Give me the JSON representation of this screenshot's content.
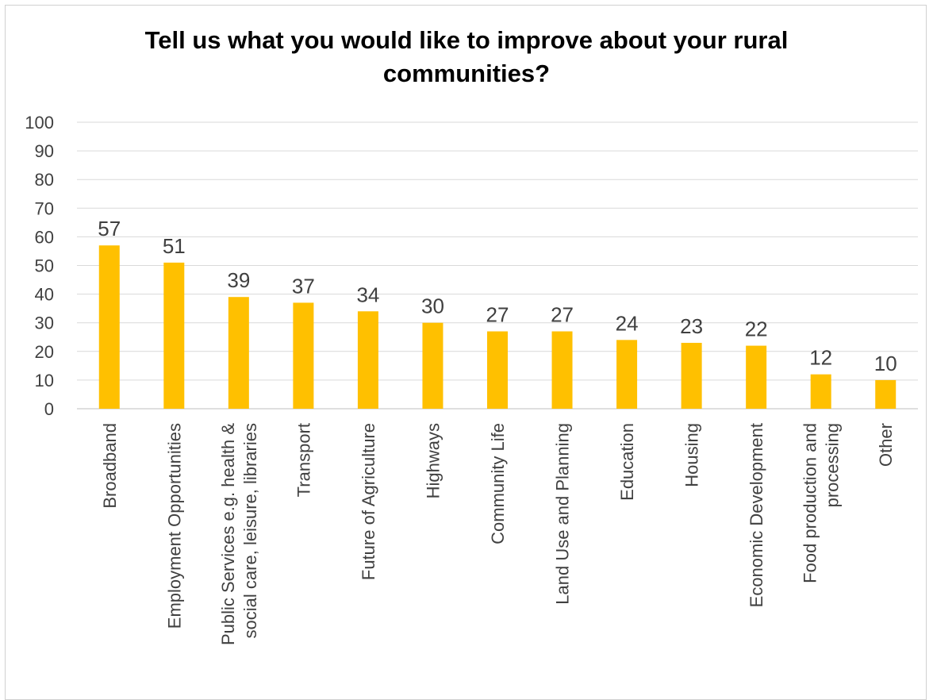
{
  "chart_data": {
    "type": "bar",
    "title_lines": [
      "Tell us what you would like to improve about your rural",
      "communities?"
    ],
    "categories": [
      [
        "Broadband"
      ],
      [
        "Employment Opportunities"
      ],
      [
        "Public Services e.g. health &",
        "social care, leisure, libraries"
      ],
      [
        "Transport"
      ],
      [
        "Future of Agriculture"
      ],
      [
        "Highways"
      ],
      [
        "Community Life"
      ],
      [
        "Land Use and Planning"
      ],
      [
        "Education"
      ],
      [
        "Housing"
      ],
      [
        "Economic Development"
      ],
      [
        "Food production and",
        "processing"
      ],
      [
        "Other"
      ]
    ],
    "values": [
      57,
      51,
      39,
      37,
      34,
      30,
      27,
      27,
      24,
      23,
      22,
      12,
      10
    ],
    "ylim": [
      0,
      100
    ],
    "yticks": [
      0,
      10,
      20,
      30,
      40,
      50,
      60,
      70,
      80,
      90,
      100
    ],
    "grid": true,
    "bar_color": "#FFC000",
    "grid_color": "#d9d9d9",
    "axis_color": "#bfbfbf"
  }
}
